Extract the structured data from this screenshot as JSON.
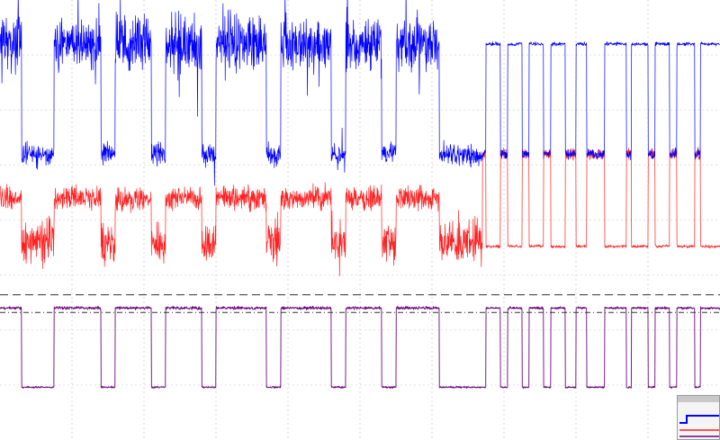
{
  "chart_data": {
    "type": "line",
    "title": "",
    "xlabel": "",
    "ylabel": "",
    "xlim": [
      0,
      100
    ],
    "ylim": [
      0,
      100
    ],
    "grid": true,
    "legend": "none",
    "series": [
      {
        "color": "#0000ff",
        "high": 90,
        "low": 65,
        "segments": [
          {
            "x": [
              0,
              3
            ],
            "level": "high"
          },
          {
            "x": [
              3,
              7.5
            ],
            "level": "low"
          },
          {
            "x": [
              7.5,
              14
            ],
            "level": "high"
          },
          {
            "x": [
              14,
              16
            ],
            "level": "low"
          },
          {
            "x": [
              16,
              21
            ],
            "level": "high"
          },
          {
            "x": [
              21,
              23
            ],
            "level": "low"
          },
          {
            "x": [
              23,
              28
            ],
            "level": "high"
          },
          {
            "x": [
              28,
              30
            ],
            "level": "low"
          },
          {
            "x": [
              30,
              37
            ],
            "level": "high"
          },
          {
            "x": [
              37,
              39
            ],
            "level": "low"
          },
          {
            "x": [
              39,
              46
            ],
            "level": "high"
          },
          {
            "x": [
              46,
              48
            ],
            "level": "low"
          },
          {
            "x": [
              48,
              53
            ],
            "level": "high"
          },
          {
            "x": [
              53,
              55
            ],
            "level": "low"
          },
          {
            "x": [
              55,
              57
            ],
            "level": "high"
          },
          {
            "x": [
              57,
              61
            ],
            "level": "high"
          },
          {
            "x": [
              61,
              67.5
            ],
            "level": "low"
          },
          {
            "x": [
              67.5,
              69.5
            ],
            "level": "high"
          },
          {
            "x": [
              69.5,
              70.5
            ],
            "level": "low"
          },
          {
            "x": [
              70.5,
              72.5
            ],
            "level": "high"
          },
          {
            "x": [
              72.5,
              73.5
            ],
            "level": "low"
          },
          {
            "x": [
              73.5,
              75.5
            ],
            "level": "high"
          },
          {
            "x": [
              75.5,
              76.5
            ],
            "level": "low"
          },
          {
            "x": [
              76.5,
              78.5
            ],
            "level": "high"
          },
          {
            "x": [
              78.5,
              80
            ],
            "level": "low"
          },
          {
            "x": [
              80,
              81.5
            ],
            "level": "high"
          },
          {
            "x": [
              81.5,
              84
            ],
            "level": "low"
          },
          {
            "x": [
              84,
              87
            ],
            "level": "high"
          },
          {
            "x": [
              87,
              87.7
            ],
            "level": "low"
          },
          {
            "x": [
              87.7,
              90
            ],
            "level": "high"
          },
          {
            "x": [
              90,
              91
            ],
            "level": "low"
          },
          {
            "x": [
              91,
              93
            ],
            "level": "high"
          },
          {
            "x": [
              93,
              94
            ],
            "level": "low"
          },
          {
            "x": [
              94,
              96.5
            ],
            "level": "high"
          },
          {
            "x": [
              96.5,
              97.3
            ],
            "level": "low"
          },
          {
            "x": [
              97.3,
              100
            ],
            "level": "high"
          }
        ]
      },
      {
        "color": "#ff2020",
        "high": 55,
        "low": 45
      },
      {
        "color": "#6a0a7a",
        "high": 30,
        "low": 12
      }
    ],
    "reference_lines": [
      {
        "y": 33,
        "style": "long-dash"
      },
      {
        "y": 29,
        "style": "dash-dot"
      }
    ]
  }
}
